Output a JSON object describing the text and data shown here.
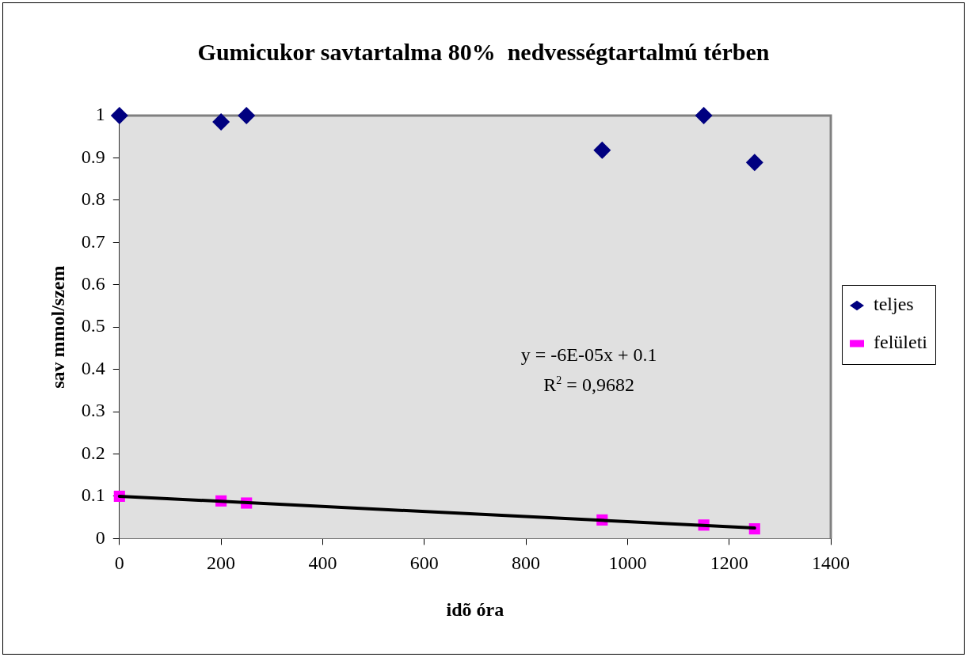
{
  "chart_data": {
    "type": "scatter",
    "title": "Gumicukor savtartalma 80%  nedvességtartalmú térben",
    "xlabel": "idõ óra",
    "ylabel": "sav mmol/szem",
    "xlim": [
      0,
      1400
    ],
    "xticks": [
      0,
      200,
      400,
      600,
      800,
      1000,
      1200,
      1400
    ],
    "ylim": [
      0,
      1
    ],
    "yticks": [
      0,
      0.1,
      0.2,
      0.3,
      0.4,
      0.5,
      0.6,
      0.7,
      0.8,
      0.9,
      1
    ],
    "legend": "right",
    "series": [
      {
        "name": "teljes",
        "color": "#000080",
        "marker": "diamond",
        "x": [
          0,
          200,
          250,
          950,
          1150,
          1250
        ],
        "values": [
          1,
          0.985,
          1,
          0.918,
          1,
          0.889
        ]
      },
      {
        "name": "felületi",
        "color": "#ff00ff",
        "marker": "square",
        "x": [
          0,
          200,
          250,
          950,
          1150,
          1250
        ],
        "values": [
          0.1,
          0.089,
          0.084,
          0.044,
          0.032,
          0.023
        ]
      },
      {
        "type": "line",
        "color": "#000000",
        "marker": "none",
        "line_style": "solid",
        "x": [
          0,
          1250
        ],
        "values": [
          0.1,
          0.025
        ]
      }
    ],
    "annotations": [
      "y = -6E-05x + 0.1",
      "R$^{2}$ = 0,9682"
    ]
  }
}
